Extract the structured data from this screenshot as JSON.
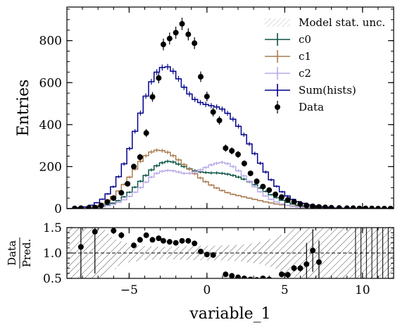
{
  "chart_data": {
    "type": "histogram",
    "x": {
      "label": "variable_1",
      "range": [
        -9,
        12
      ],
      "ticks": [
        -5,
        0,
        5,
        10
      ],
      "tick_labels": [
        "−5",
        "0",
        "5",
        "10"
      ],
      "bin_edges_start": -9,
      "bin_width": 0.35
    },
    "y_main": {
      "label": "Entries",
      "range": [
        0,
        960
      ],
      "ticks": [
        0,
        200,
        400,
        600,
        800
      ],
      "tick_labels": [
        "0",
        "200",
        "400",
        "600",
        "800"
      ]
    },
    "y_ratio": {
      "label_top": "Data",
      "label_bottom": "Pred.",
      "range": [
        0.5,
        1.5
      ],
      "ticks": [
        0.5,
        1.0,
        1.5
      ],
      "tick_labels": [
        "0.5",
        "1.0",
        "1.5"
      ],
      "reference_line": 1.0
    },
    "series": [
      {
        "name": "c0",
        "color": "#0b5345",
        "values": [
          0,
          1,
          1,
          2,
          4,
          8,
          12,
          18,
          26,
          38,
          56,
          78,
          102,
          130,
          158,
          184,
          204,
          218,
          225,
          222,
          212,
          200,
          190,
          180,
          175,
          172,
          170,
          170,
          168,
          164,
          158,
          150,
          140,
          128,
          114,
          98,
          82,
          66,
          52,
          40,
          30,
          22,
          16,
          12,
          8,
          6,
          4,
          3,
          2,
          1,
          1,
          1,
          0,
          0,
          0,
          0,
          0,
          0,
          0,
          0
        ]
      },
      {
        "name": "c1",
        "color": "#a97c50",
        "values": [
          0,
          1,
          2,
          4,
          8,
          14,
          24,
          38,
          58,
          84,
          115,
          150,
          188,
          225,
          252,
          270,
          278,
          276,
          268,
          252,
          232,
          210,
          188,
          166,
          146,
          128,
          112,
          98,
          86,
          76,
          68,
          62,
          56,
          50,
          44,
          38,
          32,
          27,
          22,
          18,
          15,
          12,
          10,
          8,
          6,
          5,
          4,
          3,
          2,
          2,
          1,
          1,
          1,
          0,
          0,
          0,
          0,
          0,
          0,
          0
        ]
      },
      {
        "name": "c2",
        "color": "#b9a9e8",
        "values": [
          0,
          0,
          1,
          2,
          4,
          6,
          9,
          14,
          20,
          30,
          42,
          58,
          78,
          100,
          126,
          150,
          168,
          178,
          182,
          180,
          174,
          168,
          168,
          174,
          184,
          196,
          208,
          216,
          220,
          214,
          200,
          180,
          156,
          130,
          104,
          80,
          60,
          44,
          32,
          22,
          15,
          10,
          7,
          5,
          3,
          2,
          1,
          1,
          1,
          0,
          0,
          0,
          0,
          0,
          0,
          0,
          0,
          0,
          0,
          0
        ]
      },
      {
        "name": "Sum(hists)",
        "color": "#00008b",
        "values": [
          0,
          2,
          4,
          8,
          16,
          28,
          45,
          70,
          104,
          152,
          213,
          286,
          368,
          455,
          536,
          604,
          650,
          672,
          675,
          654,
          618,
          578,
          546,
          520,
          505,
          496,
          490,
          484,
          474,
          454,
          426,
          392,
          352,
          308,
          262,
          216,
          174,
          137,
          106,
          80,
          60,
          44,
          33,
          25,
          17,
          13,
          9,
          7,
          5,
          3,
          2,
          2,
          1,
          0,
          0,
          0,
          0,
          0,
          0,
          0
        ]
      }
    ],
    "data": {
      "name": "Data",
      "color": "#000000",
      "x": [
        -8.5,
        -8.1,
        -7.6,
        -7.2,
        -6.8,
        -6.4,
        -6.0,
        -5.5,
        -5.1,
        -4.7,
        -4.3,
        -3.9,
        -3.5,
        -3.1,
        -2.8,
        -2.4,
        -2.0,
        -1.6,
        -1.2,
        -0.8,
        -0.4,
        0.0,
        0.4,
        0.8,
        1.2,
        1.6,
        2.0,
        2.4,
        2.8,
        3.2,
        3.6,
        4.0,
        4.4,
        4.8,
        5.2,
        5.6,
        6.0,
        6.4,
        6.8,
        7.2,
        7.6,
        8.0,
        8.5,
        9.0,
        9.4,
        9.8,
        10.2,
        10.6,
        11.0,
        11.4,
        11.8
      ],
      "y": [
        1,
        2,
        3,
        5,
        15,
        32,
        50,
        75,
        118,
        200,
        245,
        360,
        532,
        622,
        782,
        810,
        838,
        880,
        830,
        788,
        628,
        534,
        460,
        420,
        288,
        275,
        258,
        215,
        168,
        130,
        105,
        88,
        68,
        55,
        42,
        32,
        22,
        15,
        11,
        8,
        6,
        4,
        3,
        2,
        2,
        1,
        1,
        1,
        0,
        0,
        0
      ],
      "ratio_x": [
        -8.1,
        -7.2,
        -6.0,
        -5.5,
        -4.7,
        -4.3,
        -3.9,
        -3.5,
        -3.1,
        -2.8,
        -2.4,
        -2.0,
        -1.6,
        -1.2,
        -0.8,
        -0.4,
        0.0,
        0.4,
        1.2,
        1.6,
        2.0,
        2.4,
        2.8,
        3.2,
        3.6,
        4.0,
        4.8,
        5.2,
        5.6,
        6.0,
        6.4,
        6.8,
        7.2
      ],
      "ratio_y": [
        1.12,
        1.42,
        1.44,
        1.35,
        1.15,
        1.26,
        1.35,
        1.26,
        1.29,
        1.24,
        1.22,
        1.2,
        1.24,
        1.24,
        1.19,
        1.03,
        0.97,
        0.96,
        0.58,
        0.55,
        0.52,
        0.5,
        0.48,
        0.47,
        0.5,
        0.48,
        0.58,
        0.57,
        0.7,
        0.7,
        0.78,
        1.05,
        0.82
      ]
    },
    "legend": {
      "position": "top-right",
      "entries": [
        {
          "label": "Model stat. unc.",
          "kind": "hatch"
        },
        {
          "label": "c0",
          "kind": "errorbar",
          "color": "#0b5345"
        },
        {
          "label": "c1",
          "kind": "errorbar",
          "color": "#a97c50"
        },
        {
          "label": "c2",
          "kind": "errorbar",
          "color": "#b9a9e8"
        },
        {
          "label": "Sum(hists)",
          "kind": "errorbar",
          "color": "#00008b"
        },
        {
          "label": "Data",
          "kind": "point",
          "color": "#000000"
        }
      ]
    },
    "grid": false
  }
}
